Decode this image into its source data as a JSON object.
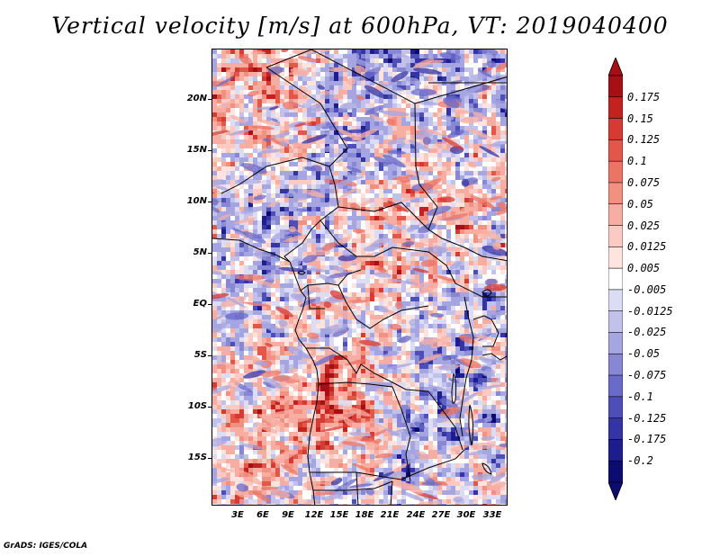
{
  "title": "Vertical velocity [m/s] at 600hPa, VT: 2019040400",
  "footer": "GrADS: IGES/COLA",
  "map": {
    "variable": "Vertical velocity",
    "units": "m/s",
    "level": "600hPa",
    "valid_time": "2019040400",
    "lat_labels": [
      "20N",
      "15N",
      "10N",
      "5N",
      "EQ",
      "5S",
      "10S",
      "15S"
    ],
    "lon_labels": [
      "3E",
      "6E",
      "9E",
      "12E",
      "15E",
      "18E",
      "21E",
      "24E",
      "27E",
      "30E",
      "33E"
    ]
  },
  "colorbar": {
    "labels": [
      "0.175",
      "0.15",
      "0.125",
      "0.1",
      "0.075",
      "0.05",
      "0.025",
      "0.0125",
      "0.005",
      "-0.005",
      "-0.0125",
      "-0.025",
      "-0.05",
      "-0.075",
      "-0.1",
      "-0.125",
      "-0.175",
      "-0.2"
    ],
    "colors": [
      "#a50f15",
      "#c2231f",
      "#d63b33",
      "#e3574b",
      "#ec7465",
      "#f29082",
      "#f7ada2",
      "#fbcac2",
      "#fde4df",
      "#ffffff",
      "#dcdcf5",
      "#c1c1ec",
      "#a5a5e2",
      "#8787d6",
      "#6a6ac8",
      "#4e4eb8",
      "#3434a5",
      "#1d1d8f",
      "#0b0b70"
    ]
  }
}
